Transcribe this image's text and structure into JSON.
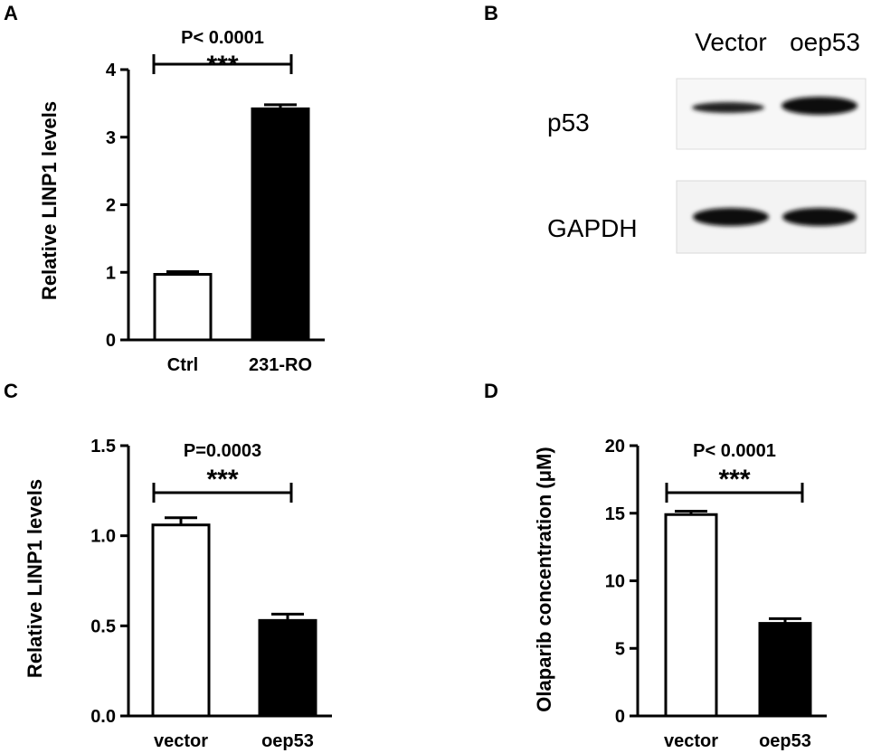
{
  "panels": {
    "A": {
      "letter": "A"
    },
    "B": {
      "letter": "B"
    },
    "C": {
      "letter": "C"
    },
    "D": {
      "letter": "D"
    }
  },
  "chart_data": [
    {
      "panel": "A",
      "type": "bar",
      "categories": [
        "Ctrl",
        "231-RO"
      ],
      "values": [
        0.97,
        3.42
      ],
      "errors": [
        0.04,
        0.06
      ],
      "fills": [
        "#ffffff",
        "#000000"
      ],
      "ylabel": "Relative LINP1  levels",
      "xlabel": "",
      "ylim": [
        0,
        4
      ],
      "yticks": [
        0,
        1,
        2,
        3,
        4
      ],
      "ytick_labels": [
        "0",
        "1",
        "2",
        "3",
        "4"
      ],
      "annotation": {
        "pvalue": "P< 0.0001",
        "stars": "***"
      }
    },
    {
      "panel": "C",
      "type": "bar",
      "categories": [
        "vector",
        "oep53"
      ],
      "values": [
        1.06,
        0.53
      ],
      "errors": [
        0.04,
        0.035
      ],
      "fills": [
        "#ffffff",
        "#000000"
      ],
      "ylabel": "Relative LINP1  levels",
      "xlabel": "",
      "ylim": [
        0,
        1.5
      ],
      "yticks": [
        0,
        0.5,
        1.0,
        1.5
      ],
      "ytick_labels": [
        "0.0",
        "0.5",
        "1.0",
        "1.5"
      ],
      "annotation": {
        "pvalue": "P=0.0003",
        "stars": "***"
      }
    },
    {
      "panel": "D",
      "type": "bar",
      "categories": [
        "vector",
        "oep53"
      ],
      "values": [
        14.9,
        6.85
      ],
      "errors": [
        0.25,
        0.35
      ],
      "fills": [
        "#ffffff",
        "#000000"
      ],
      "ylabel": "Olaparib concentration (μM)",
      "xlabel": "",
      "ylim": [
        0,
        20
      ],
      "yticks": [
        0,
        5,
        10,
        15,
        20
      ],
      "ytick_labels": [
        "0",
        "5",
        "10",
        "15",
        "20"
      ],
      "annotation": {
        "pvalue": "P< 0.0001",
        "stars": "***"
      }
    }
  ],
  "western_blot": {
    "lanes": [
      "Vector",
      "oep53"
    ],
    "rows": [
      {
        "label": "p53"
      },
      {
        "label": "GAPDH"
      }
    ]
  }
}
